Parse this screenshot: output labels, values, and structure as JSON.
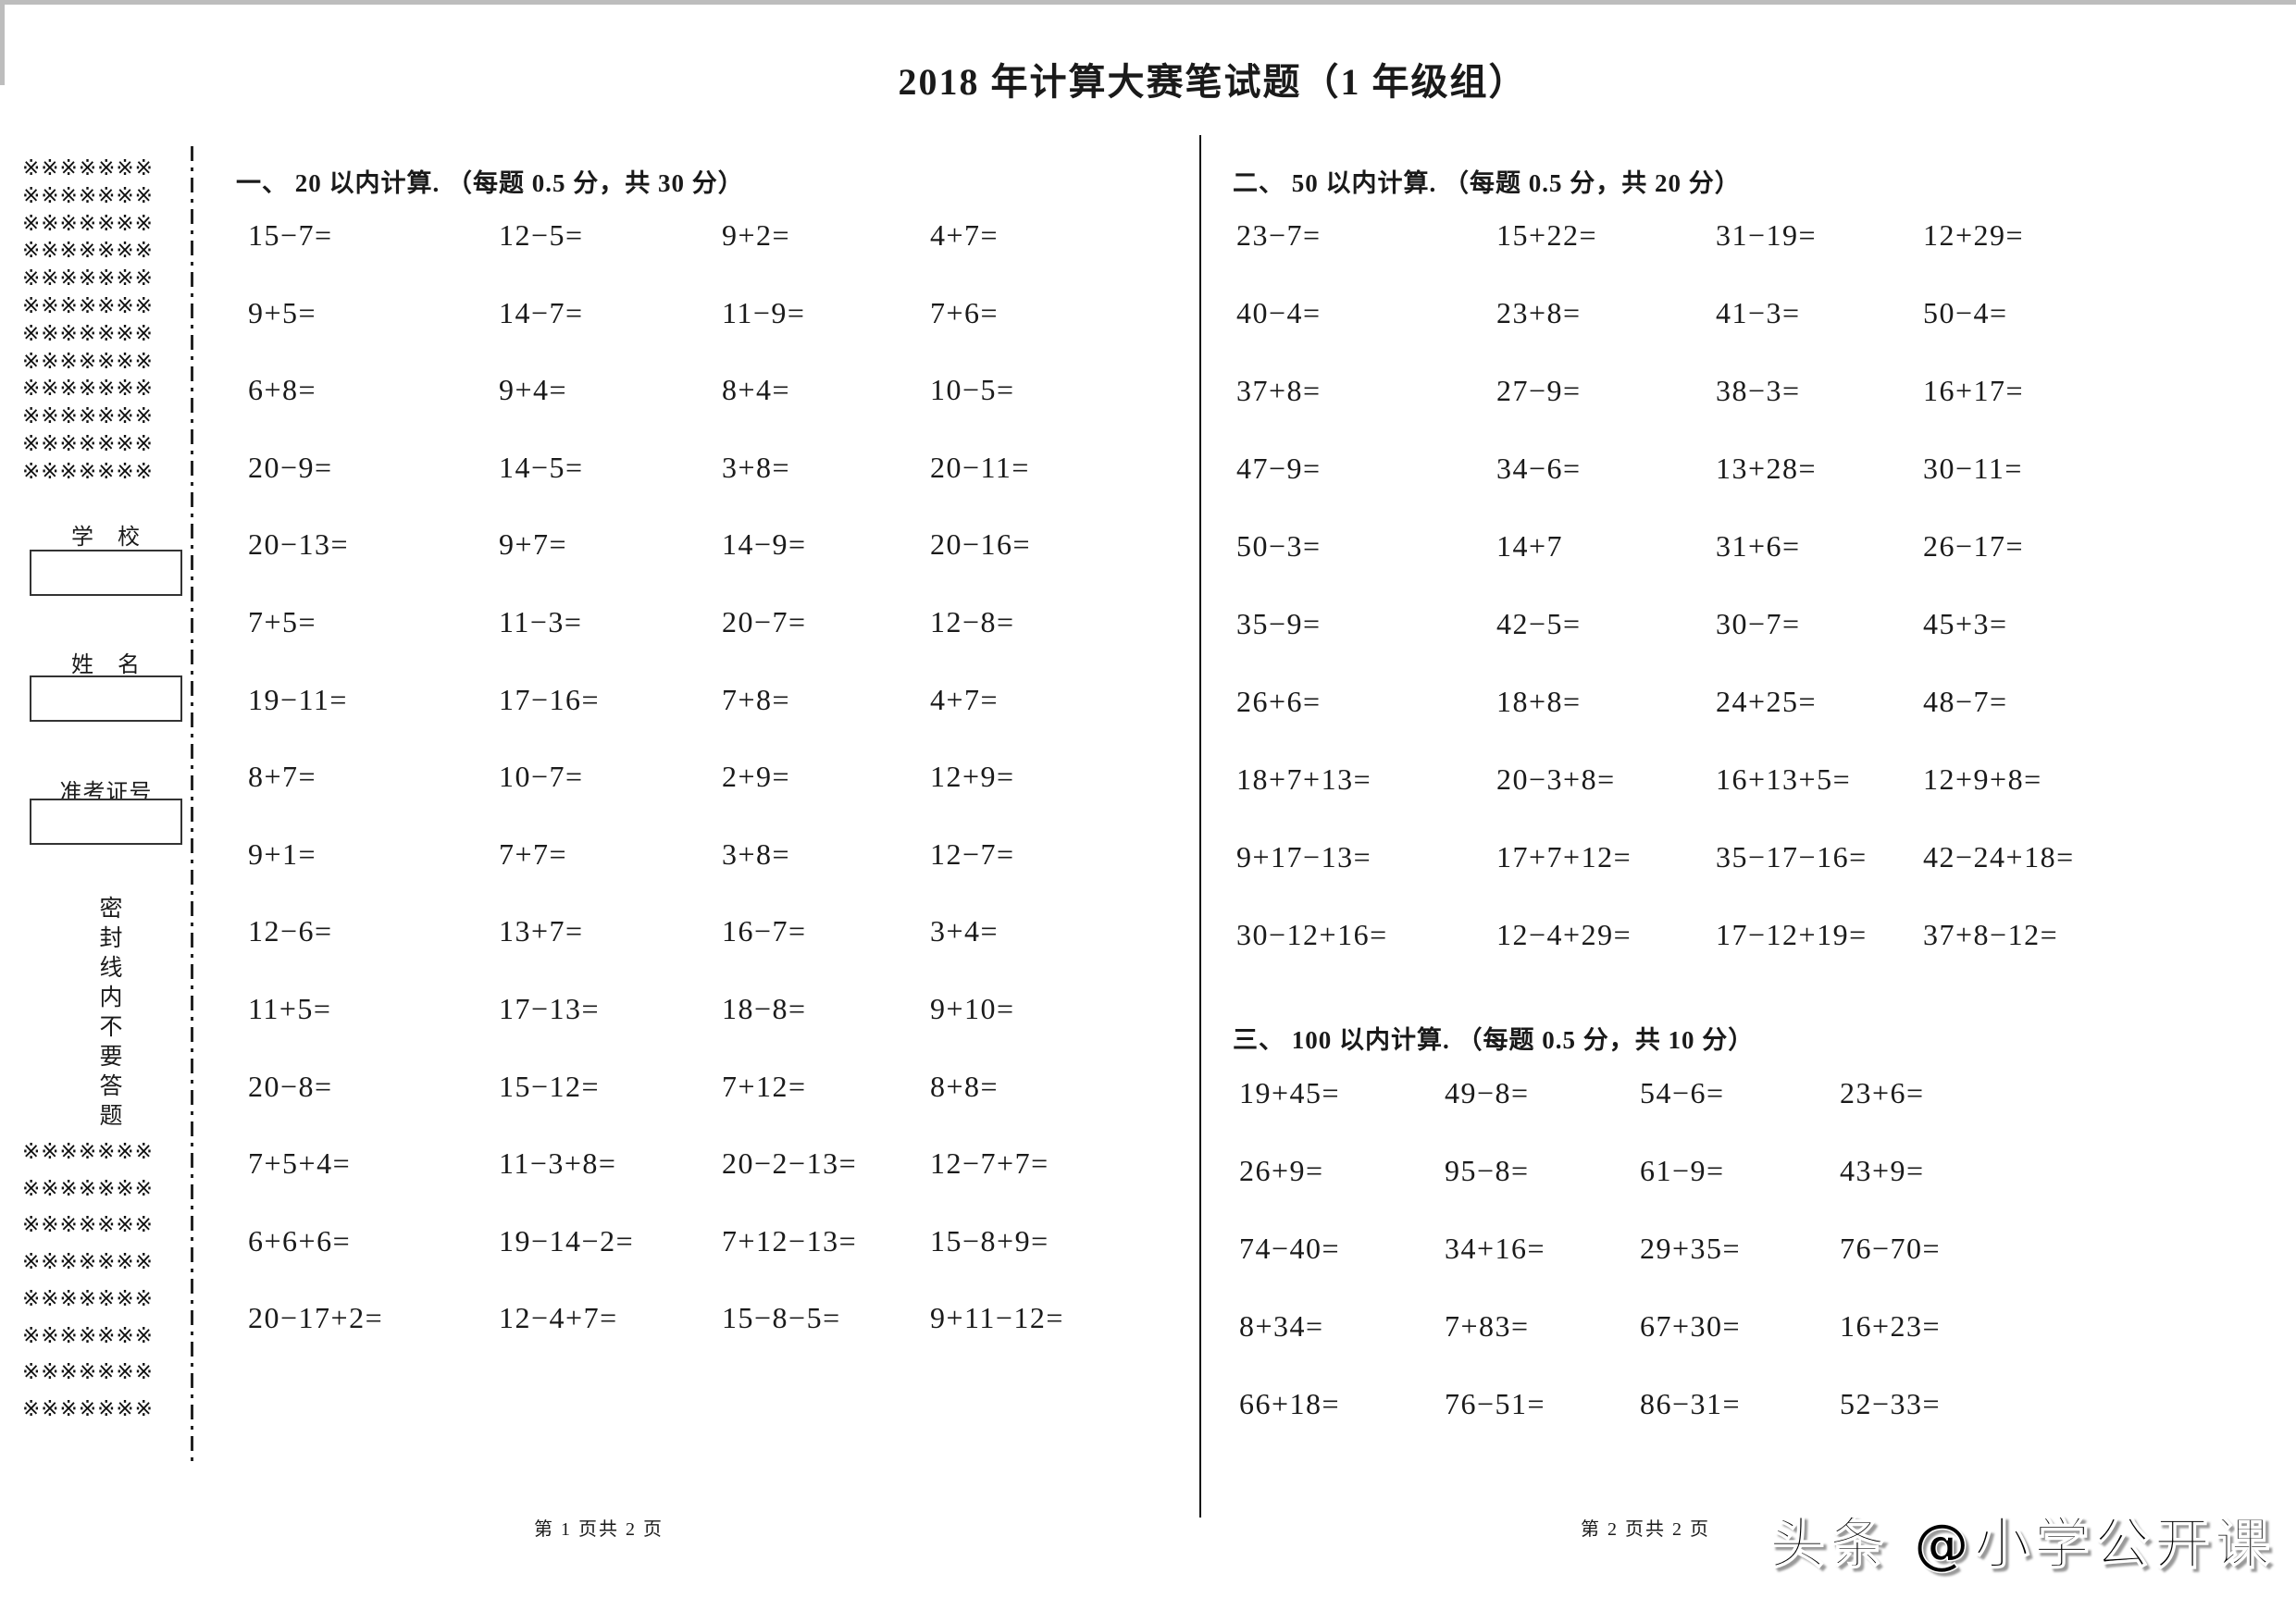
{
  "header": {
    "title": "2018 年计算大赛笔试题（1 年级组）"
  },
  "seal_area": {
    "row_pattern": "※※※※※※※",
    "top_block_rows": 12,
    "bottom_block_rows": 8,
    "fields": [
      {
        "label": "学　校"
      },
      {
        "label": "姓　名"
      },
      {
        "label": "准考证号"
      }
    ],
    "vertical_note": "密封线内不要答题"
  },
  "sections": [
    {
      "heading": "一、 20 以内计算. （每题 0.5 分，共 30 分）",
      "problems": [
        [
          "15−7=",
          "12−5=",
          "9+2=",
          "4+7="
        ],
        [
          "9+5=",
          "14−7=",
          "11−9=",
          "7+6="
        ],
        [
          "6+8=",
          "9+4=",
          "8+4=",
          "10−5="
        ],
        [
          "20−9=",
          "14−5=",
          "3+8=",
          "20−11="
        ],
        [
          "20−13=",
          "9+7=",
          "14−9=",
          "20−16="
        ],
        [
          "7+5=",
          "11−3=",
          "20−7=",
          "12−8="
        ],
        [
          "19−11=",
          "17−16=",
          "7+8=",
          "4+7="
        ],
        [
          "8+7=",
          "10−7=",
          "2+9=",
          "12+9="
        ],
        [
          "9+1=",
          "7+7=",
          "3+8=",
          "12−7="
        ],
        [
          "12−6=",
          "13+7=",
          "16−7=",
          "3+4="
        ],
        [
          "11+5=",
          "17−13=",
          "18−8=",
          "9+10="
        ],
        [
          "20−8=",
          "15−12=",
          "7+12=",
          "8+8="
        ],
        [
          "7+5+4=",
          "11−3+8=",
          "20−2−13=",
          "12−7+7="
        ],
        [
          "6+6+6=",
          "19−14−2=",
          "7+12−13=",
          "15−8+9="
        ],
        [
          "20−17+2=",
          "12−4+7=",
          "15−8−5=",
          "9+11−12="
        ]
      ]
    },
    {
      "heading": "二、 50 以内计算. （每题 0.5 分，共 20 分）",
      "problems": [
        [
          "23−7=",
          "15+22=",
          "31−19=",
          "12+29="
        ],
        [
          "40−4=",
          "23+8=",
          "41−3=",
          "50−4="
        ],
        [
          "37+8=",
          "27−9=",
          "38−3=",
          "16+17="
        ],
        [
          "47−9=",
          "34−6=",
          "13+28=",
          "30−11="
        ],
        [
          "50−3=",
          "14+7",
          "31+6=",
          "26−17="
        ],
        [
          "35−9=",
          "42−5=",
          "30−7=",
          "45+3="
        ],
        [
          "26+6=",
          "18+8=",
          "24+25=",
          "48−7="
        ],
        [
          "18+7+13=",
          "20−3+8=",
          "16+13+5=",
          "12+9+8="
        ],
        [
          "9+17−13=",
          "17+7+12=",
          "35−17−16=",
          "42−24+18="
        ],
        [
          "30−12+16=",
          "12−4+29=",
          "17−12+19=",
          "37+8−12="
        ]
      ]
    },
    {
      "heading": "三、 100 以内计算. （每题 0.5 分，共 10 分）",
      "problems": [
        [
          "19+45=",
          "49−8=",
          "54−6=",
          "23+6="
        ],
        [
          "26+9=",
          "95−8=",
          "61−9=",
          "43+9="
        ],
        [
          "74−40=",
          "34+16=",
          "29+35=",
          "76−70="
        ],
        [
          "8+34=",
          "7+83=",
          "67+30=",
          "16+23="
        ],
        [
          "66+18=",
          "76−51=",
          "86−31=",
          "52−33="
        ]
      ]
    }
  ],
  "footers": {
    "page1": "第 1 页共 2 页",
    "page2": "第 2 页共 2 页"
  },
  "watermark": "头条 @小学公开课"
}
